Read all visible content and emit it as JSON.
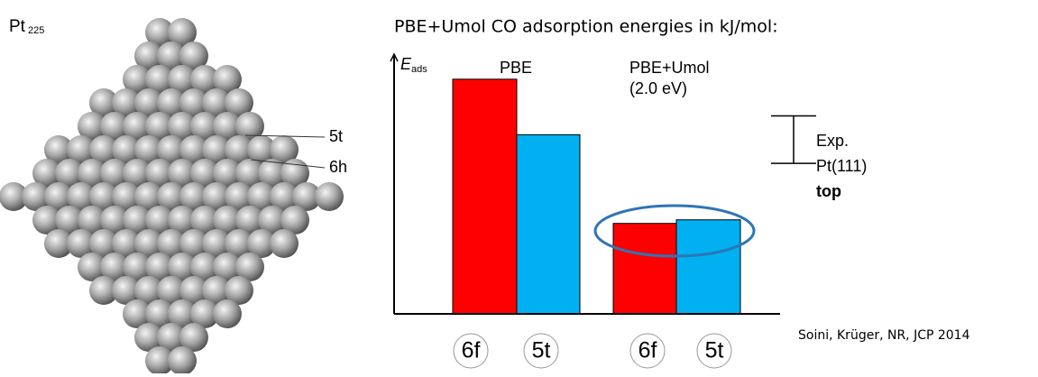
{
  "title": "PBE+Umol CO adsorption energies in kJ/mol:",
  "citation": "Soini, Krüger, NR, JCP 2014",
  "cluster": {
    "label": "Pt",
    "sub": "225",
    "sites": [
      "5t",
      "6h"
    ]
  },
  "chart_data": {
    "type": "bar",
    "y_label": "E",
    "y_label_sub": "ads",
    "groups": [
      [
        "PBE"
      ],
      [
        "PBE+Umol",
        "(2.0 eV)"
      ]
    ],
    "categories": [
      "6f",
      "5t",
      "6f",
      "5t"
    ],
    "values": [
      262,
      200,
      101,
      105
    ],
    "colors": [
      "#ff0000",
      "#00b0f0",
      "#ff0000",
      "#00b0f0"
    ],
    "ylim": [
      0,
      290
    ],
    "reference": {
      "labels": [
        "Exp.",
        "Pt(111)",
        "top"
      ],
      "range": [
        168,
        221
      ]
    }
  }
}
